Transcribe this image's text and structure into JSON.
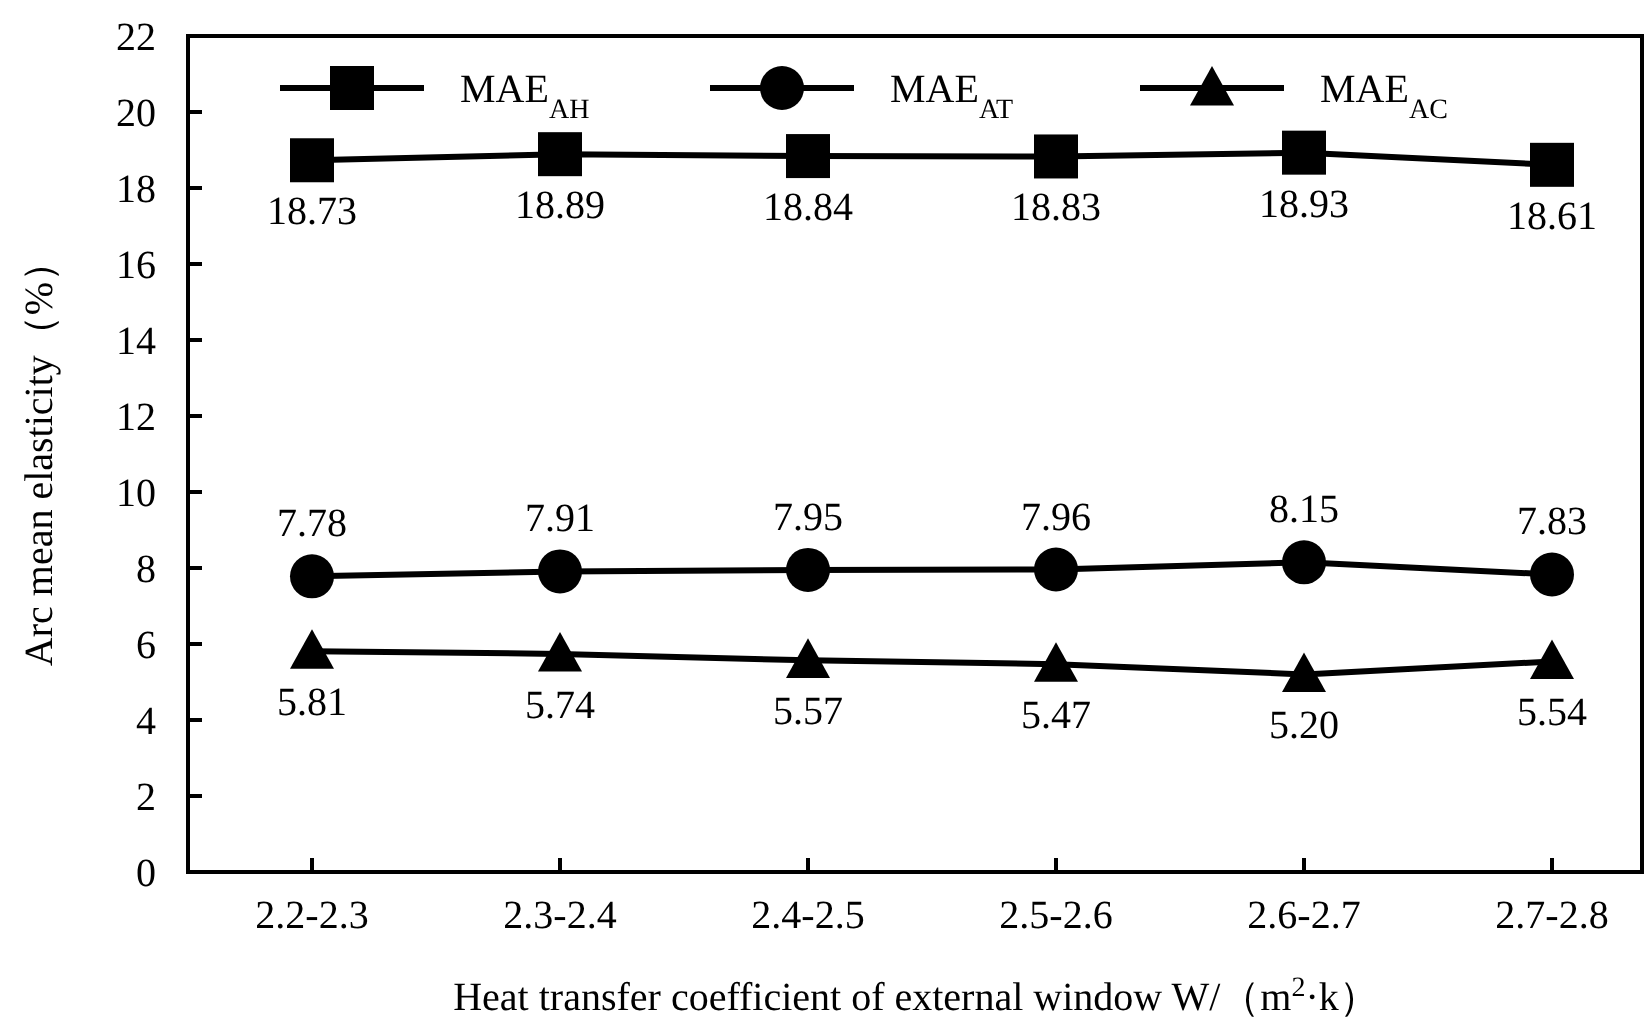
{
  "chart_data": {
    "type": "line",
    "xlabel": "Heat transfer coefficient of external window W/（m$^{2}$·k）",
    "ylabel": "Arc mean elasticity（%）",
    "categories": [
      "2.2-2.3",
      "2.3-2.4",
      "2.4-2.5",
      "2.5-2.6",
      "2.6-2.7",
      "2.7-2.8"
    ],
    "series": [
      {
        "name": "MAE$_{AH}$",
        "color": "#000000",
        "marker": "square",
        "values": [
          18.73,
          18.89,
          18.84,
          18.83,
          18.93,
          18.61
        ],
        "value_labels": [
          "18.73",
          "18.89",
          "18.84",
          "18.83",
          "18.93",
          "18.61"
        ]
      },
      {
        "name": "MAE$_{AT}$",
        "color": "#000000",
        "marker": "circle",
        "values": [
          7.78,
          7.91,
          7.95,
          7.96,
          8.15,
          7.83
        ],
        "value_labels": [
          "7.78",
          "7.91",
          "7.95",
          "7.96",
          "8.15",
          "7.83"
        ]
      },
      {
        "name": "MAE$_{AC}$",
        "color": "#000000",
        "marker": "triangle",
        "values": [
          5.81,
          5.74,
          5.57,
          5.47,
          5.2,
          5.54
        ],
        "value_labels": [
          "5.81",
          "5.74",
          "5.57",
          "5.47",
          "5.20",
          "5.54"
        ]
      }
    ],
    "ylim": [
      0,
      22
    ],
    "yticks": [
      0,
      2,
      4,
      6,
      8,
      10,
      12,
      14,
      16,
      18,
      20,
      22
    ],
    "grid": false,
    "legend": "top",
    "line_style": "solid"
  }
}
